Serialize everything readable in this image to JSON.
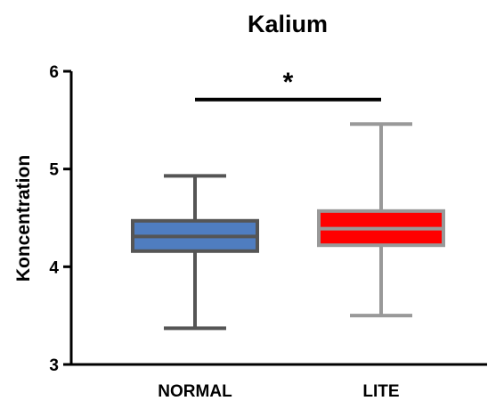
{
  "chart_data": {
    "type": "boxplot",
    "title": "Kalium",
    "xlabel": "",
    "ylabel": "Koncentration",
    "ylim": [
      3,
      6
    ],
    "yticks": [
      3,
      4,
      5,
      6
    ],
    "grid": false,
    "categories": [
      "NORMAL",
      "LITE"
    ],
    "series": [
      {
        "category": "NORMAL",
        "min": 3.37,
        "q1": 4.16,
        "median": 4.31,
        "q3": 4.47,
        "max": 4.93,
        "fill": "#4f7dc0",
        "stroke": "#555555"
      },
      {
        "category": "LITE",
        "min": 3.5,
        "q1": 4.22,
        "median": 4.39,
        "q3": 4.57,
        "max": 5.46,
        "fill": "#ff0000",
        "stroke": "#999999"
      }
    ],
    "significance": {
      "from": "NORMAL",
      "to": "LITE",
      "y": 5.71,
      "label": "*"
    }
  }
}
